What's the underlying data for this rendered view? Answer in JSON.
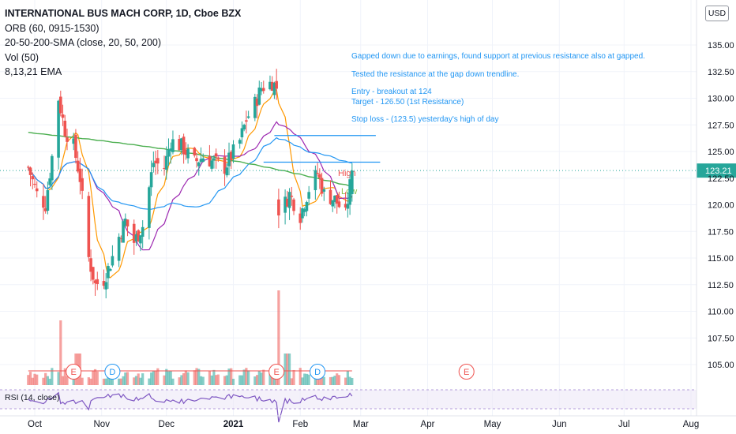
{
  "header": {
    "title": "INTERNATIONAL BUS MACH CORP, 1D, Cboe BZX",
    "indicators": [
      "ORB (60, 0915-1530)",
      "20-50-200-SMA (close, 20, 50, 200)",
      "Vol (50)",
      "8,13,21 EMA"
    ]
  },
  "currency_button": "USD",
  "notes": [
    "Gapped down due to earnings, found support at previous resistance also at gapped.",
    "Tested the resistance at the gap down trendline.",
    "Entry - breakout at 124",
    "Target - 126.50 (1st Resistance)",
    "Stop loss - (123.5) yesterday's high of day"
  ],
  "labels": {
    "high": "High",
    "low": "Low"
  },
  "last_price": "123.21",
  "rsi_label": "RSI (14, close)",
  "colors": {
    "up": "#26a69a",
    "down": "#ef5350",
    "sma_green": "#4caf50",
    "sma_blue": "#2196f3",
    "ema_orange": "#ff9800",
    "ema_purple": "#9c27b0",
    "note_blue": "#2196f3",
    "rsi": "#7e57c2"
  },
  "chart_data": {
    "type": "candlestick",
    "title": "INTERNATIONAL BUS MACH CORP, 1D, Cboe BZX",
    "y_ticks": [
      "105.00",
      "107.50",
      "110.00",
      "112.50",
      "115.00",
      "117.50",
      "120.00",
      "122.50",
      "125.00",
      "127.50",
      "130.00",
      "132.50",
      "135.00"
    ],
    "x_ticks": [
      "Oct",
      "Nov",
      "Dec",
      "2021",
      "Feb",
      "Mar",
      "Apr",
      "May",
      "Jun",
      "Jul",
      "Aug"
    ],
    "ylim": [
      102.5,
      137.5
    ],
    "events": [
      {
        "label": "E",
        "date": "2020-10-19"
      },
      {
        "label": "D",
        "date": "2020-11-06"
      },
      {
        "label": "E",
        "date": "2021-01-21"
      },
      {
        "label": "D",
        "date": "2021-02-09"
      },
      {
        "label": "E",
        "date": "2021-04-19"
      }
    ],
    "horizontal_lines": [
      {
        "value": 126.5,
        "from": "2021-01-20",
        "to": "2021-03-08"
      },
      {
        "value": 124.0,
        "from": "2021-01-15",
        "to": "2021-03-10"
      }
    ],
    "price_path": [
      [
        "2020-09-28",
        123.5
      ],
      [
        "2020-10-02",
        121.0
      ],
      [
        "2020-10-06",
        120.0
      ],
      [
        "2020-10-09",
        124.5
      ],
      [
        "2020-10-12",
        130.0
      ],
      [
        "2020-10-15",
        127.0
      ],
      [
        "2020-10-19",
        125.5
      ],
      [
        "2020-10-22",
        122.5
      ],
      [
        "2020-10-26",
        115.0
      ],
      [
        "2020-10-29",
        112.5
      ],
      [
        "2020-11-02",
        113.0
      ],
      [
        "2020-11-05",
        114.5
      ],
      [
        "2020-11-09",
        117.0
      ],
      [
        "2020-11-12",
        118.5
      ],
      [
        "2020-11-16",
        116.5
      ],
      [
        "2020-11-20",
        118.0
      ],
      [
        "2020-11-25",
        124.0
      ],
      [
        "2020-11-30",
        123.5
      ],
      [
        "2020-12-03",
        126.0
      ],
      [
        "2020-12-08",
        125.5
      ],
      [
        "2020-12-14",
        124.0
      ],
      [
        "2020-12-18",
        124.5
      ],
      [
        "2020-12-23",
        124.0
      ],
      [
        "2020-12-28",
        123.5
      ],
      [
        "2021-01-04",
        126.0
      ],
      [
        "2021-01-07",
        128.0
      ],
      [
        "2021-01-11",
        129.5
      ],
      [
        "2021-01-14",
        131.0
      ],
      [
        "2021-01-19",
        131.5
      ],
      [
        "2021-01-21",
        131.0
      ],
      [
        "2021-01-22",
        119.0
      ],
      [
        "2021-01-27",
        121.0
      ],
      [
        "2021-02-01",
        119.0
      ],
      [
        "2021-02-05",
        121.5
      ],
      [
        "2021-02-09",
        123.0
      ],
      [
        "2021-02-12",
        121.0
      ],
      [
        "2021-02-17",
        120.5
      ],
      [
        "2021-02-22",
        119.0
      ],
      [
        "2021-02-25",
        123.21
      ]
    ],
    "volume_spikes": [
      {
        "date": "2020-10-13",
        "level": "high"
      },
      {
        "date": "2021-01-22",
        "level": "very high"
      }
    ],
    "last_value": 123.21
  }
}
